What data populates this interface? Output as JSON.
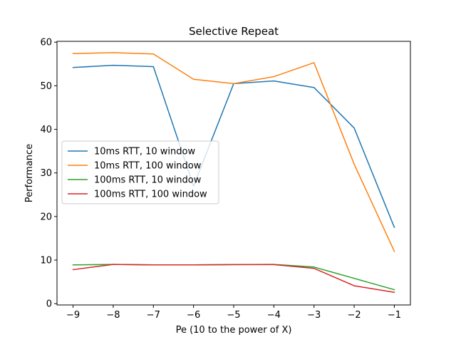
{
  "chart_data": {
    "type": "line",
    "title": "Selective Repeat",
    "xlabel": "Pe (10 to the power of X)",
    "ylabel": "Performance",
    "x": [
      -9,
      -8,
      -7,
      -6,
      -5,
      -4,
      -3,
      -2,
      -1
    ],
    "xticks": [
      -9,
      -8,
      -7,
      -6,
      -5,
      -4,
      -3,
      -2,
      -1
    ],
    "xtick_labels": [
      "−9",
      "−8",
      "−7",
      "−6",
      "−5",
      "−4",
      "−3",
      "−2",
      "−1"
    ],
    "yticks": [
      0,
      10,
      20,
      30,
      40,
      50,
      60
    ],
    "ytick_labels": [
      "0",
      "10",
      "20",
      "30",
      "40",
      "50",
      "60"
    ],
    "xlim": [
      -9.4,
      -0.6
    ],
    "ylim": [
      -0.3,
      60.2
    ],
    "grid": false,
    "legend_position": "center-left",
    "series": [
      {
        "name": "10ms RTT, 10 window",
        "color": "#1f77b4",
        "values": [
          54.2,
          54.7,
          54.4,
          27.0,
          50.5,
          51.1,
          49.6,
          40.3,
          17.5
        ]
      },
      {
        "name": "10ms RTT, 100 window",
        "color": "#ff7f0e",
        "values": [
          57.4,
          57.6,
          57.3,
          51.5,
          50.5,
          52.1,
          55.3,
          32.0,
          12.0
        ]
      },
      {
        "name": "100ms RTT, 10 window",
        "color": "#2ca02c",
        "values": [
          8.9,
          9.0,
          8.9,
          8.9,
          8.95,
          9.0,
          8.4,
          5.8,
          3.2
        ]
      },
      {
        "name": "100ms RTT, 100 window",
        "color": "#d62728",
        "values": [
          7.8,
          9.0,
          8.9,
          8.9,
          8.95,
          8.95,
          8.1,
          4.1,
          2.6
        ]
      }
    ]
  }
}
